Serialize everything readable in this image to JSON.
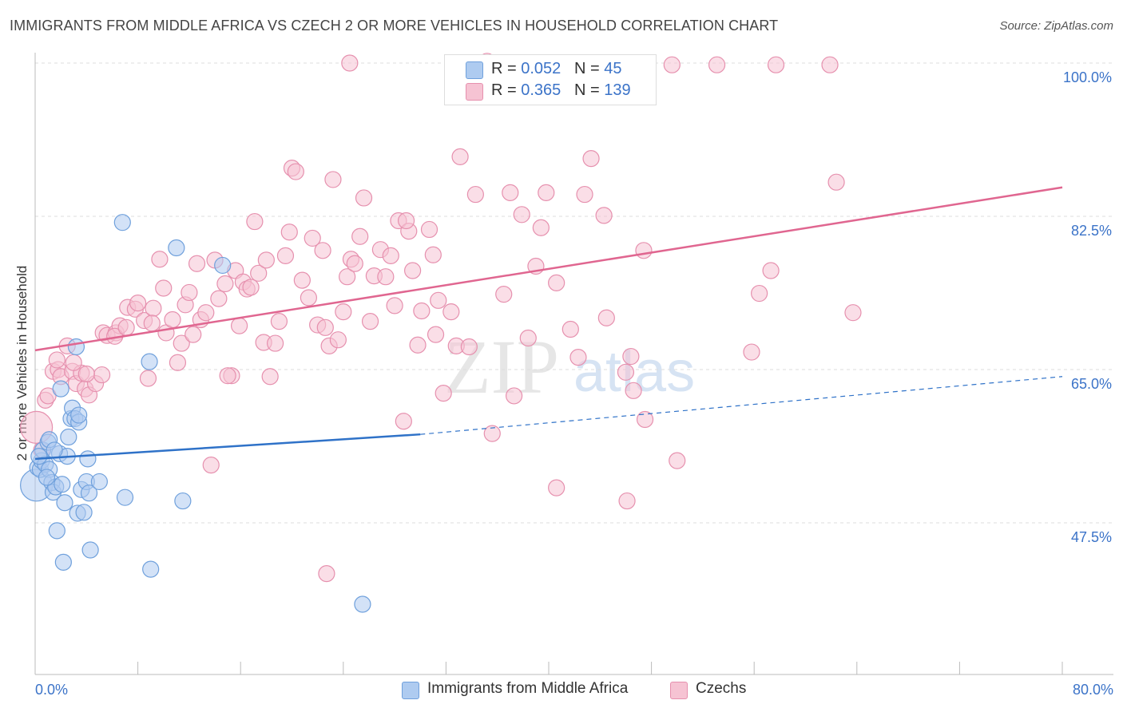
{
  "title": "IMMIGRANTS FROM MIDDLE AFRICA VS CZECH 2 OR MORE VEHICLES IN HOUSEHOLD CORRELATION CHART",
  "source": "Source: ZipAtlas.com",
  "watermark": {
    "zip": "ZIP",
    "atlas": "atlas"
  },
  "legend": {
    "series1": {
      "r_label": "R = ",
      "r_value": "0.052",
      "n_label": "N = ",
      "n_value": "45"
    },
    "series2": {
      "r_label": "R = ",
      "r_value": "0.365",
      "n_label": "N = ",
      "n_value": "139"
    }
  },
  "chart_data": {
    "type": "scatter",
    "title": "IMMIGRANTS FROM MIDDLE AFRICA VS CZECH 2 OR MORE VEHICLES IN HOUSEHOLD CORRELATION CHART",
    "xlabel": "",
    "ylabel": "2 or more Vehicles in Household",
    "xlim": [
      0,
      80
    ],
    "ylim": [
      32.5,
      102
    ],
    "x_tick_labels": [
      "0.0%",
      "80.0%"
    ],
    "y_ticks": [
      47.5,
      65.0,
      82.5,
      100.0
    ],
    "y_tick_labels": [
      "47.5%",
      "65.0%",
      "82.5%",
      "100.0%"
    ],
    "colors": {
      "blue": "#6fa0dc",
      "blue_fill": "#aecbf0",
      "pink": "#e690ae",
      "pink_fill": "#f6c3d3",
      "blue_line": "#2f72c8",
      "pink_line": "#e06690",
      "tick_text": "#3b73c8"
    },
    "series": [
      {
        "name": "Immigrants from Middle Africa",
        "color": "blue",
        "trend": {
          "x0": 0,
          "y0": 54.8,
          "x1": 30,
          "y1": 57.6,
          "dash_x1": 80,
          "dash_y1": 64.2
        },
        "points": [
          [
            0.1,
            51.8,
            "l"
          ],
          [
            0.2,
            53.8
          ],
          [
            0.4,
            53.6
          ],
          [
            0.5,
            54.6
          ],
          [
            0.6,
            55.8
          ],
          [
            0.8,
            54.2
          ],
          [
            1.0,
            56.7
          ],
          [
            1.1,
            53.6
          ],
          [
            1.3,
            52.1
          ],
          [
            1.4,
            51.0
          ],
          [
            1.6,
            51.6
          ],
          [
            1.7,
            46.6
          ],
          [
            1.9,
            55.4
          ],
          [
            2.1,
            51.9
          ],
          [
            2.2,
            43.0
          ],
          [
            2.3,
            49.8
          ],
          [
            2.5,
            55.1
          ],
          [
            2.6,
            57.3
          ],
          [
            2.8,
            59.4
          ],
          [
            2.9,
            60.6
          ],
          [
            3.1,
            59.4
          ],
          [
            3.3,
            48.6
          ],
          [
            3.4,
            59.0
          ],
          [
            3.6,
            51.3
          ],
          [
            3.8,
            48.7
          ],
          [
            4.0,
            52.2
          ],
          [
            4.1,
            54.8
          ],
          [
            4.2,
            50.9
          ],
          [
            4.3,
            44.4
          ],
          [
            5.0,
            52.2
          ],
          [
            6.8,
            81.8
          ],
          [
            7.0,
            50.4
          ],
          [
            8.9,
            65.9
          ],
          [
            9.0,
            42.2
          ],
          [
            11.0,
            78.9
          ],
          [
            11.5,
            50.0
          ],
          [
            14.6,
            76.9
          ],
          [
            25.5,
            38.2
          ],
          [
            2.0,
            62.8
          ],
          [
            3.4,
            59.8
          ],
          [
            3.2,
            67.6
          ],
          [
            0.3,
            55.1
          ],
          [
            1.1,
            57.0
          ],
          [
            1.5,
            55.8
          ],
          [
            0.9,
            52.7
          ]
        ]
      },
      {
        "name": "Czechs",
        "color": "pink",
        "trend": {
          "x0": 0,
          "y0": 67.2,
          "x1": 80,
          "y1": 85.8
        },
        "points": [
          [
            0.1,
            58.4,
            "l"
          ],
          [
            0.5,
            55.8
          ],
          [
            0.8,
            61.5
          ],
          [
            1.0,
            62.0
          ],
          [
            1.4,
            64.8
          ],
          [
            1.8,
            65.0
          ],
          [
            2.0,
            64.2
          ],
          [
            2.5,
            67.7
          ],
          [
            2.9,
            64.8
          ],
          [
            3.2,
            63.4
          ],
          [
            3.6,
            64.6
          ],
          [
            3.9,
            62.8
          ],
          [
            4.2,
            62.1
          ],
          [
            4.7,
            63.4
          ],
          [
            5.2,
            64.4
          ],
          [
            5.3,
            69.2
          ],
          [
            5.6,
            68.9
          ],
          [
            6.3,
            69.2
          ],
          [
            6.6,
            70.0
          ],
          [
            7.2,
            72.1
          ],
          [
            7.8,
            71.9
          ],
          [
            8.0,
            72.6
          ],
          [
            8.5,
            70.6
          ],
          [
            8.8,
            64.0
          ],
          [
            9.2,
            72.0
          ],
          [
            9.7,
            77.6
          ],
          [
            10.0,
            74.3
          ],
          [
            10.2,
            69.2
          ],
          [
            10.7,
            70.7
          ],
          [
            11.1,
            65.8
          ],
          [
            11.4,
            68.0
          ],
          [
            11.7,
            72.4
          ],
          [
            12.0,
            73.8
          ],
          [
            12.3,
            69.0
          ],
          [
            12.6,
            77.1
          ],
          [
            12.9,
            70.7
          ],
          [
            13.3,
            71.5
          ],
          [
            13.7,
            54.1
          ],
          [
            14.0,
            77.5
          ],
          [
            14.3,
            73.1
          ],
          [
            14.8,
            74.8
          ],
          [
            15.3,
            64.3
          ],
          [
            15.6,
            76.3
          ],
          [
            15.9,
            70.0
          ],
          [
            16.2,
            75.0
          ],
          [
            16.5,
            74.2
          ],
          [
            16.8,
            74.4
          ],
          [
            17.1,
            81.9
          ],
          [
            17.4,
            76.0
          ],
          [
            17.8,
            68.1
          ],
          [
            18.0,
            77.5
          ],
          [
            18.3,
            64.2
          ],
          [
            18.7,
            68.0
          ],
          [
            19.0,
            70.5
          ],
          [
            19.5,
            78.0
          ],
          [
            19.8,
            80.7
          ],
          [
            20.0,
            88.0
          ],
          [
            20.3,
            87.6
          ],
          [
            20.8,
            75.2
          ],
          [
            21.3,
            73.2
          ],
          [
            21.6,
            80.0
          ],
          [
            22.0,
            70.1
          ],
          [
            22.4,
            78.6
          ],
          [
            22.6,
            69.8
          ],
          [
            22.9,
            67.7
          ],
          [
            23.2,
            86.7
          ],
          [
            23.6,
            68.4
          ],
          [
            24.0,
            71.6
          ],
          [
            24.3,
            75.6
          ],
          [
            24.6,
            77.6
          ],
          [
            24.9,
            77.1
          ],
          [
            25.3,
            80.2
          ],
          [
            25.6,
            84.6
          ],
          [
            26.1,
            70.5
          ],
          [
            26.4,
            75.7
          ],
          [
            26.9,
            78.7
          ],
          [
            27.3,
            75.6
          ],
          [
            27.7,
            78.0
          ],
          [
            28.0,
            72.3
          ],
          [
            28.3,
            82.0
          ],
          [
            28.7,
            59.1
          ],
          [
            29.1,
            80.8
          ],
          [
            29.4,
            76.3
          ],
          [
            29.8,
            67.8
          ],
          [
            30.1,
            71.7
          ],
          [
            30.7,
            81.0
          ],
          [
            31.0,
            78.1
          ],
          [
            31.4,
            72.9
          ],
          [
            31.8,
            62.3
          ],
          [
            32.4,
            71.6
          ],
          [
            32.8,
            67.7
          ],
          [
            33.1,
            89.3
          ],
          [
            33.8,
            67.6
          ],
          [
            34.3,
            85.0
          ],
          [
            35.2,
            100.2
          ],
          [
            35.6,
            57.7
          ],
          [
            36.5,
            73.6
          ],
          [
            37.0,
            85.2
          ],
          [
            37.9,
            82.7
          ],
          [
            38.4,
            68.6
          ],
          [
            39.0,
            76.8
          ],
          [
            39.4,
            81.2
          ],
          [
            39.8,
            85.2
          ],
          [
            40.6,
            74.9
          ],
          [
            41.7,
            69.6
          ],
          [
            42.8,
            85.0
          ],
          [
            43.3,
            89.1
          ],
          [
            44.3,
            82.6
          ],
          [
            44.5,
            70.9
          ],
          [
            46.0,
            64.7
          ],
          [
            46.4,
            66.5
          ],
          [
            47.4,
            78.6
          ],
          [
            47.5,
            59.3
          ],
          [
            49.6,
            99.8
          ],
          [
            50.0,
            54.6
          ],
          [
            53.1,
            99.8
          ],
          [
            55.8,
            67.0
          ],
          [
            57.3,
            76.3
          ],
          [
            57.7,
            99.8
          ],
          [
            61.9,
            99.8
          ],
          [
            62.4,
            86.4
          ],
          [
            63.7,
            71.5
          ],
          [
            56.4,
            73.7
          ],
          [
            24.5,
            100.0
          ],
          [
            22.7,
            41.7
          ],
          [
            42.3,
            66.4
          ],
          [
            46.1,
            50.0
          ],
          [
            40.6,
            51.5
          ],
          [
            46.6,
            62.6
          ],
          [
            4.0,
            64.5
          ],
          [
            6.2,
            68.8
          ],
          [
            15.0,
            64.3
          ],
          [
            28.9,
            82.0
          ],
          [
            37.3,
            62.0
          ],
          [
            7.1,
            69.8
          ],
          [
            9.1,
            70.3
          ],
          [
            31.2,
            69.0
          ],
          [
            3.0,
            65.8
          ],
          [
            1.7,
            66.1
          ]
        ]
      }
    ]
  },
  "bottom_legend": {
    "series1": "Immigrants from Middle Africa",
    "series2": "Czechs"
  }
}
